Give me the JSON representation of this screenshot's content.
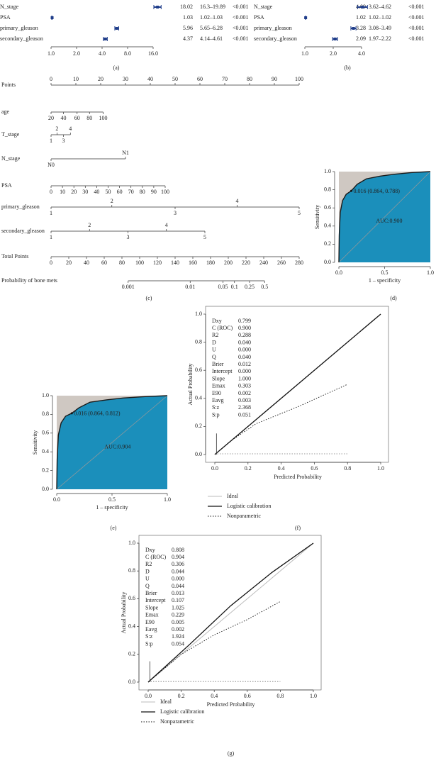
{
  "forest_a": {
    "label": "(a)",
    "xlim": [
      1,
      16
    ],
    "xticks": [
      {
        "value": 1,
        "label": "1.0"
      },
      {
        "value": 2,
        "label": "2.0"
      },
      {
        "value": 4,
        "label": "4.0"
      },
      {
        "value": 8,
        "label": "8.0"
      },
      {
        "value": 16,
        "label": "16.0"
      }
    ],
    "rows": [
      {
        "name": "N_stage",
        "estimate": 18.02,
        "ci": "16.3–19.89",
        "p": "<0.001",
        "lower": 16.3,
        "upper": 19.89
      },
      {
        "name": "PSA",
        "estimate": 1.03,
        "ci": "1.02–1.03",
        "p": "<0.001",
        "lower": 1.02,
        "upper": 1.03
      },
      {
        "name": "primary_gleason",
        "estimate": 5.96,
        "ci": "5.65–6.28",
        "p": "<0.001",
        "lower": 5.65,
        "upper": 6.28
      },
      {
        "name": "secondary_gleason",
        "estimate": 4.37,
        "ci": "4.14–4.61",
        "p": "<0.001",
        "lower": 4.14,
        "upper": 4.61
      }
    ]
  },
  "forest_b": {
    "label": "(b)",
    "xlim": [
      1,
      4
    ],
    "xticks": [
      {
        "value": 1,
        "label": "1.0"
      },
      {
        "value": 2,
        "label": "2.0"
      },
      {
        "value": 4,
        "label": "4.0"
      }
    ],
    "rows": [
      {
        "name": "N_stage",
        "estimate": 4.09,
        "ci": "3.62–4.62",
        "p": "<0.001",
        "lower": 3.62,
        "upper": 4.62
      },
      {
        "name": "PSA",
        "estimate": 1.02,
        "ci": "1.02–1.02",
        "p": "<0.001",
        "lower": 1.02,
        "upper": 1.02
      },
      {
        "name": "primary_gleason",
        "estimate": 3.28,
        "ci": "3.08–3.49",
        "p": "<0.001",
        "lower": 3.08,
        "upper": 3.49
      },
      {
        "name": "secondary_gleason",
        "estimate": 2.09,
        "ci": "1.97–2.22",
        "p": "<0.001",
        "lower": 1.97,
        "upper": 2.22
      }
    ]
  },
  "nomogram": {
    "label": "(c)",
    "points": {
      "name": "Points",
      "ticks": [
        0,
        10,
        20,
        30,
        40,
        50,
        60,
        70,
        80,
        90,
        100
      ]
    },
    "variables": [
      {
        "name": "age",
        "staggered": false,
        "ticks": [
          20,
          40,
          60,
          80,
          100
        ],
        "points": [
          0,
          5,
          10.5,
          15.5,
          21
        ]
      },
      {
        "name": "T_stage",
        "staggered": true,
        "ticks": [
          1,
          2,
          3,
          4
        ],
        "points": [
          0,
          2.4,
          5,
          7.8
        ]
      },
      {
        "name": "N_stage",
        "staggered": true,
        "ticks": [
          "N0",
          "N1"
        ],
        "points": [
          0,
          30
        ]
      },
      {
        "name": "PSA",
        "staggered": false,
        "ticks": [
          0,
          10,
          20,
          30,
          40,
          50,
          60,
          70,
          80,
          90,
          100
        ],
        "points": [
          0,
          4.6,
          9.2,
          13.8,
          18.4,
          23,
          27.6,
          32.2,
          36.8,
          41.4,
          46
        ]
      },
      {
        "name": "primary_gleason",
        "staggered": true,
        "ticks": [
          1,
          2,
          3,
          4,
          5
        ],
        "points": [
          0,
          24.5,
          50,
          75,
          100
        ]
      },
      {
        "name": "secondary_gleason",
        "staggered": true,
        "ticks": [
          1,
          2,
          3,
          4,
          5
        ],
        "points": [
          0,
          15.5,
          31,
          46.5,
          62
        ]
      }
    ],
    "total": {
      "name": "Total Points",
      "ticks": [
        0,
        20,
        40,
        60,
        80,
        100,
        120,
        140,
        160,
        180,
        200,
        220,
        240,
        260,
        280
      ]
    },
    "probability": {
      "name": "Probability of bone mets",
      "ticks": [
        0.001,
        0.01,
        0.05,
        0.1,
        0.25,
        0.5
      ],
      "total_points": [
        87,
        157,
        194,
        207,
        224,
        241
      ]
    }
  },
  "roc_d": {
    "label": "(d)",
    "auc_label": "AUC:0.900",
    "cutoff_label": "0.016 (0.864, 0.788)",
    "cutoff": [
      0.136,
      0.788
    ],
    "xlabel": "1 – specificity",
    "ylabel": "Sensitivity",
    "xticks": [
      {
        "value": 0,
        "label": "0.0"
      },
      {
        "value": 0.5,
        "label": "0.5"
      },
      {
        "value": 1,
        "label": "1.0"
      }
    ],
    "yticks": [
      {
        "value": 0,
        "label": "0.0"
      },
      {
        "value": 0.2,
        "label": "0.2"
      },
      {
        "value": 0.4,
        "label": "0.4"
      },
      {
        "value": 0.6,
        "label": "0.6"
      },
      {
        "value": 0.8,
        "label": "0.8"
      },
      {
        "value": 1,
        "label": "1.0"
      }
    ],
    "fpr": [
      0,
      0.004,
      0.015,
      0.04,
      0.08,
      0.136,
      0.2,
      0.3,
      0.45,
      0.6,
      0.8,
      1
    ],
    "tpr": [
      0,
      0.3,
      0.55,
      0.68,
      0.75,
      0.788,
      0.86,
      0.92,
      0.95,
      0.97,
      0.99,
      1
    ]
  },
  "roc_e": {
    "label": "(e)",
    "auc_label": "AUC:0.904",
    "cutoff_label": "0.016 (0.864, 0.812)",
    "cutoff": [
      0.136,
      0.812
    ],
    "xlabel": "1 – specificity",
    "ylabel": "Sensitivity",
    "xticks": [
      {
        "value": 0,
        "label": "0.0"
      },
      {
        "value": 0.5,
        "label": "0.5"
      },
      {
        "value": 1,
        "label": "1.0"
      }
    ],
    "yticks": [
      {
        "value": 0,
        "label": "0.0"
      },
      {
        "value": 0.2,
        "label": "0.2"
      },
      {
        "value": 0.4,
        "label": "0.4"
      },
      {
        "value": 0.6,
        "label": "0.6"
      },
      {
        "value": 0.8,
        "label": "0.8"
      },
      {
        "value": 1,
        "label": "1.0"
      }
    ],
    "fpr": [
      0,
      0.004,
      0.015,
      0.04,
      0.08,
      0.136,
      0.2,
      0.3,
      0.45,
      0.6,
      0.8,
      1
    ],
    "tpr": [
      0,
      0.32,
      0.58,
      0.71,
      0.78,
      0.812,
      0.87,
      0.93,
      0.955,
      0.975,
      0.99,
      1
    ]
  },
  "calib_f": {
    "label": "(f)",
    "xlabel": "Predicted Probability",
    "ylabel": "Actual Probability",
    "ticks": [
      {
        "value": 0,
        "label": "0.0"
      },
      {
        "value": 0.2,
        "label": "0.2"
      },
      {
        "value": 0.4,
        "label": "0.4"
      },
      {
        "value": 0.6,
        "label": "0.6"
      },
      {
        "value": 0.8,
        "label": "0.8"
      },
      {
        "value": 1,
        "label": "1.0"
      }
    ],
    "stats": [
      [
        "Dxy",
        "0.799"
      ],
      [
        "C (ROC)",
        "0.900"
      ],
      [
        "R2",
        "0.288"
      ],
      [
        "D",
        "0.040"
      ],
      [
        "U",
        "0.000"
      ],
      [
        "Q",
        "0.040"
      ],
      [
        "Brier",
        "0.012"
      ],
      [
        "Intercept",
        "0.000"
      ],
      [
        "Slope",
        "1.000"
      ],
      [
        "Emax",
        "0.303"
      ],
      [
        "E90",
        "0.002"
      ],
      [
        "Eavg",
        "0.003"
      ],
      [
        "S:z",
        "2.368"
      ],
      [
        "S:p",
        "0.051"
      ]
    ],
    "legend": [
      "Ideal",
      "Logistic calibration",
      "Nonparametric"
    ],
    "logistic": {
      "x": [
        0,
        0.25,
        0.5,
        0.75,
        1
      ],
      "y": [
        0,
        0.25,
        0.5,
        0.75,
        1
      ]
    },
    "nonparametric": {
      "x": [
        0,
        0.1,
        0.25,
        0.5,
        0.8
      ],
      "y": [
        0,
        0.1,
        0.22,
        0.34,
        0.5
      ]
    }
  },
  "calib_g": {
    "label": "(g)",
    "xlabel": "Predicted Probability",
    "ylabel": "Actual Probability",
    "ticks": [
      {
        "value": 0,
        "label": "0.0"
      },
      {
        "value": 0.2,
        "label": "0.2"
      },
      {
        "value": 0.4,
        "label": "0.4"
      },
      {
        "value": 0.6,
        "label": "0.6"
      },
      {
        "value": 0.8,
        "label": "0.8"
      },
      {
        "value": 1,
        "label": "1.0"
      }
    ],
    "stats": [
      [
        "Dxy",
        "0.808"
      ],
      [
        "C (ROC)",
        "0.904"
      ],
      [
        "R2",
        "0.306"
      ],
      [
        "D",
        "0.044"
      ],
      [
        "U",
        "0.000"
      ],
      [
        "Q",
        "0.044"
      ],
      [
        "Brier",
        "0.013"
      ],
      [
        "Intercept",
        "0.107"
      ],
      [
        "Slope",
        "1.025"
      ],
      [
        "Emax",
        "0.229"
      ],
      [
        "E90",
        "0.005"
      ],
      [
        "Eavg",
        "0.002"
      ],
      [
        "S:z",
        "1.924"
      ],
      [
        "S:p",
        "0.054"
      ]
    ],
    "legend": [
      "Ideal",
      "Logistic calibration",
      "Nonparametric"
    ],
    "logistic": {
      "x": [
        0,
        0.25,
        0.5,
        0.75,
        1
      ],
      "y": [
        0,
        0.27,
        0.55,
        0.79,
        1
      ]
    },
    "nonparametric": {
      "x": [
        0,
        0.2,
        0.4,
        0.6,
        0.8
      ],
      "y": [
        0,
        0.2,
        0.34,
        0.45,
        0.58
      ]
    }
  }
}
